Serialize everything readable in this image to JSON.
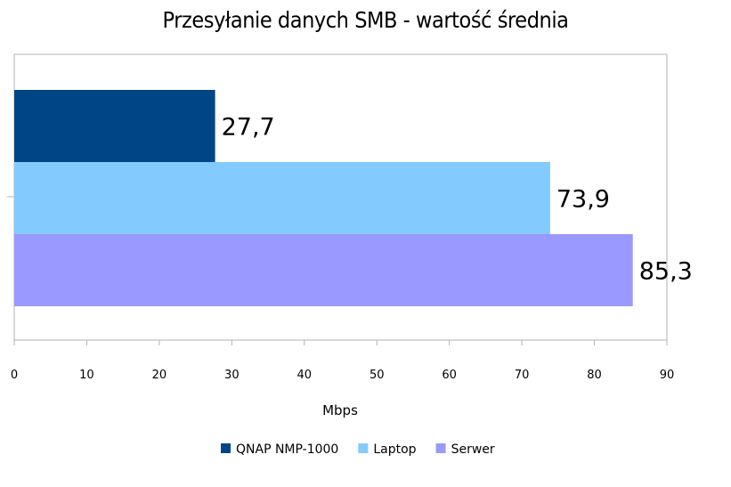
{
  "chart_data": {
    "type": "bar",
    "orientation": "horizontal",
    "title": "Przesyłanie danych SMB - wartość średnia",
    "xlabel": "Mbps",
    "ylabel": "",
    "xlim": [
      0,
      90
    ],
    "x_ticks": [
      "0",
      "10",
      "20",
      "30",
      "40",
      "50",
      "60",
      "70",
      "80",
      "90"
    ],
    "grid": false,
    "legend_position": "bottom",
    "series": [
      {
        "name": "QNAP NMP-1000",
        "value": 27.7,
        "label": "27,7",
        "color": "#004586"
      },
      {
        "name": "Laptop",
        "value": 73.9,
        "label": "73,9",
        "color": "#83caff"
      },
      {
        "name": "Serwer",
        "value": 85.3,
        "label": "85,3",
        "color": "#9999ff"
      }
    ]
  }
}
